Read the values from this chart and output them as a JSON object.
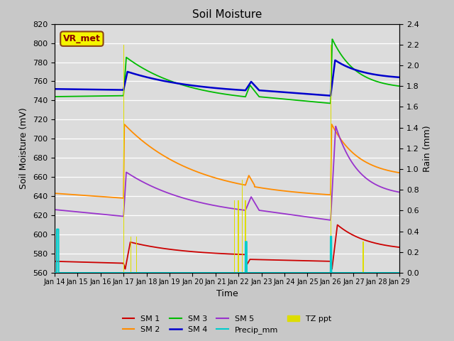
{
  "title": "Soil Moisture",
  "xlabel": "Time",
  "ylabel_left": "Soil Moisture (mV)",
  "ylabel_right": "Rain (mm)",
  "ylim_left": [
    560,
    820
  ],
  "ylim_right": [
    0.0,
    2.4
  ],
  "annotation_text": "VR_met",
  "background_color": "#c8c8c8",
  "plot_bg_color": "#dcdcdc",
  "colors": {
    "SM1": "#cc0000",
    "SM2": "#ff8c00",
    "SM3": "#00bb00",
    "SM4": "#0000cc",
    "SM5": "#9933cc",
    "Precip": "#00cccc",
    "TZ_ppt": "#dddd00"
  },
  "x_ticks_labels": [
    "Jan 14",
    "Jan 15",
    "Jan 16",
    "Jan 17",
    "Jan 18",
    "Jan 19",
    "Jan 20",
    "Jan 21",
    "Jan 22",
    "Jan 23",
    "Jan 24",
    "Jan 25",
    "Jan 26",
    "Jan 27",
    "Jan 28",
    "Jan 29"
  ],
  "x_ticks": [
    0,
    1,
    2,
    3,
    4,
    5,
    6,
    7,
    8,
    9,
    10,
    11,
    12,
    13,
    14,
    15
  ],
  "yticks_left": [
    560,
    580,
    600,
    620,
    640,
    660,
    680,
    700,
    720,
    740,
    760,
    780,
    800,
    820
  ],
  "yticks_right": [
    0.0,
    0.2,
    0.4,
    0.6,
    0.8,
    1.0,
    1.2,
    1.4,
    1.6,
    1.8,
    2.0,
    2.2,
    2.4
  ],
  "xlim": [
    0,
    15
  ]
}
